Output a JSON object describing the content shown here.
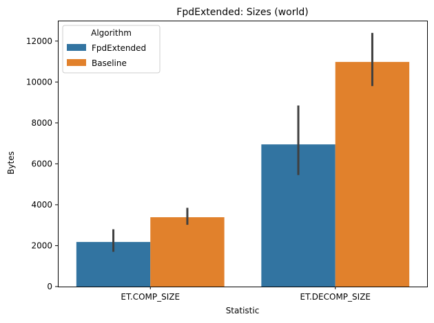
{
  "chart_data": {
    "type": "bar",
    "title": "FpdExtended: Sizes (world)",
    "xlabel": "Statistic",
    "ylabel": "Bytes",
    "categories": [
      "ET.COMP_SIZE",
      "ET.DECOMP_SIZE"
    ],
    "ylim": [
      0,
      13000
    ],
    "yticks": [
      0,
      2000,
      4000,
      6000,
      8000,
      10000,
      12000
    ],
    "grid": false,
    "legend": {
      "title": "Algorithm",
      "placement": "top-left"
    },
    "series": [
      {
        "name": "FpdExtended",
        "color": "#3274a1",
        "values": [
          2180,
          6950
        ],
        "error_low": [
          1700,
          5450
        ],
        "error_high": [
          2800,
          8850
        ]
      },
      {
        "name": "Baseline",
        "color": "#e1812c",
        "values": [
          3390,
          10980
        ],
        "error_low": [
          3020,
          9800
        ],
        "error_high": [
          3850,
          12400
        ]
      }
    ],
    "error_bar_color": "#3f3f3f"
  }
}
